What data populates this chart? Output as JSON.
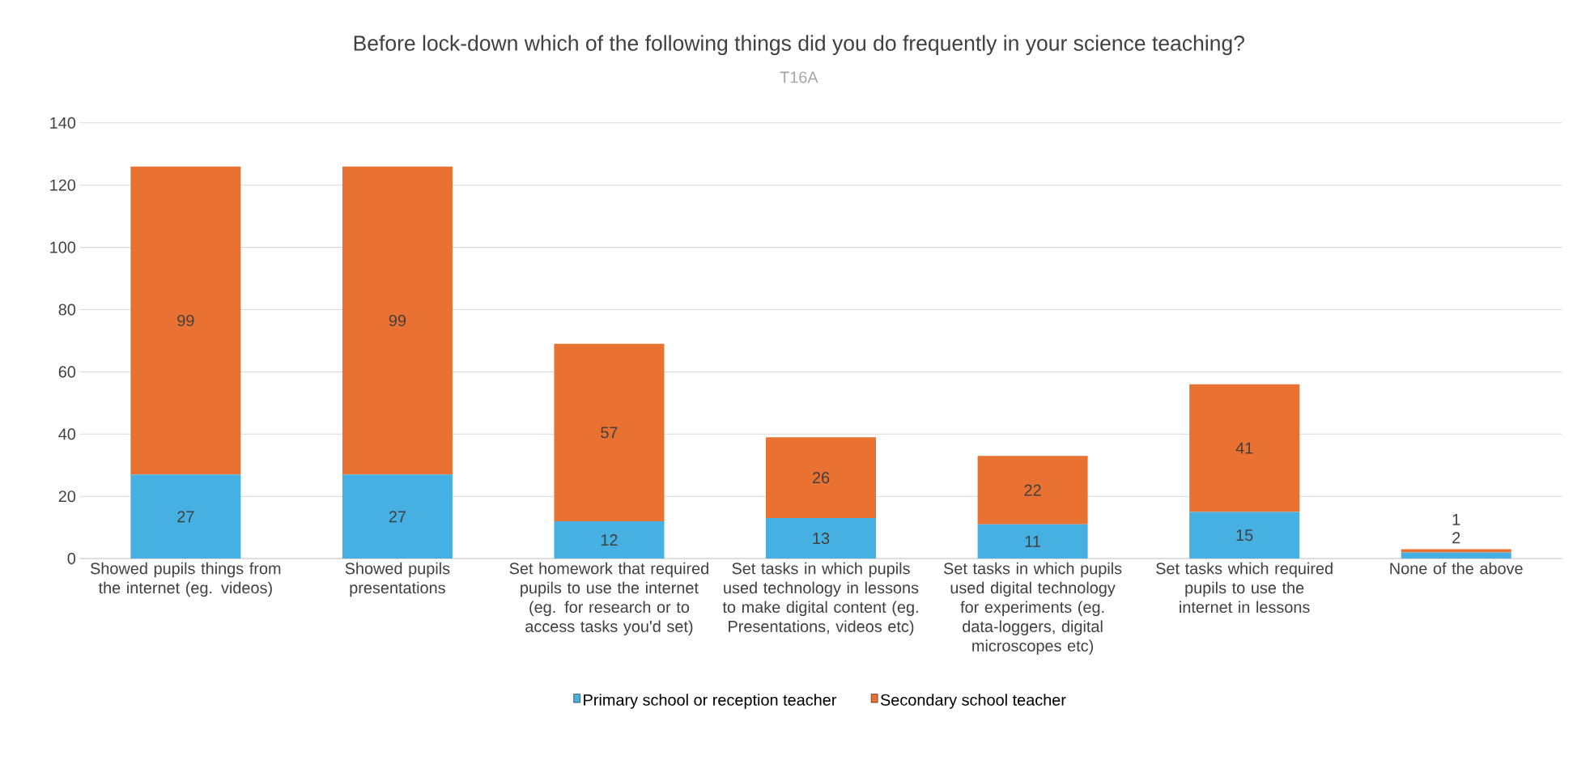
{
  "chart_data": {
    "type": "bar",
    "title": "Before lock-down which of the following things did you do frequently in your science teaching?",
    "subtitle": "T16A",
    "categories": [
      "Showed pupils things from the internet (eg. videos)",
      "Showed pupils presentations",
      "Set homework that required pupils to use the internet (eg. for research or to access tasks you'd set)",
      "Set tasks in which pupils used technology in lessons to make digital content (eg. Presentations, videos etc)",
      "Set tasks in which pupils used digital technology for experiments (eg. data-loggers,  digital microscopes etc)",
      "Set tasks which required pupils to use the internet in lessons",
      "None of the above"
    ],
    "series": [
      {
        "name": "Primary school or reception teacher",
        "color": "#45b0e1",
        "values": [
          27,
          27,
          12,
          13,
          11,
          15,
          2
        ]
      },
      {
        "name": "Secondary school teacher",
        "color": "#e97132",
        "values": [
          99,
          99,
          57,
          26,
          22,
          41,
          1
        ]
      }
    ],
    "stacked": true,
    "ylim": [
      0,
      140
    ],
    "yticks": [
      0,
      20,
      40,
      60,
      80,
      100,
      120,
      140
    ],
    "grid": "y",
    "legend": "bottom",
    "data_labels": true
  }
}
